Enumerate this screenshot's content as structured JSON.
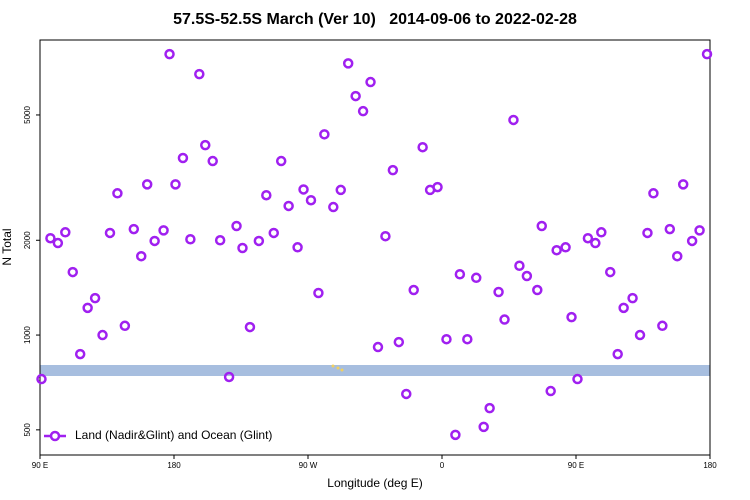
{
  "chart_data": {
    "type": "scatter",
    "title": "57.5S-52.5S March (Ver 10)   2014-09-06 to 2022-02-28",
    "x_label": "Longitude (deg E)",
    "y_label": "N Total",
    "log_y": true,
    "legend": "bottom-left",
    "xlim": [
      90,
      540
    ],
    "ylim": [
      416,
      8650
    ],
    "xticks": [
      {
        "value": 90,
        "label": "90 E"
      },
      {
        "value": 180,
        "label": "180"
      },
      {
        "value": 270,
        "label": "90 W"
      },
      {
        "value": 360,
        "label": "0"
      },
      {
        "value": 450,
        "label": "90 E"
      },
      {
        "value": 540,
        "label": "180"
      }
    ],
    "yticks": [
      500,
      1000,
      2000,
      5000
    ],
    "series": [
      {
        "name": "Land (Nadir&Glint) and Ocean (Glint)",
        "color": "#a020f0",
        "x": [
          91,
          97,
          102,
          107,
          112,
          117,
          122,
          127,
          132,
          137,
          142,
          147,
          153,
          158,
          162,
          167,
          173,
          177,
          181,
          186,
          191,
          197,
          201,
          206,
          211,
          217,
          222,
          226,
          231,
          237,
          242,
          247,
          252,
          257,
          263,
          267,
          272,
          277,
          281,
          287,
          292,
          297,
          302,
          307,
          312,
          317,
          322,
          327,
          331,
          336,
          341,
          347,
          352,
          357,
          363,
          369,
          372,
          377,
          383,
          388,
          392,
          398,
          402,
          408,
          412,
          417,
          424,
          427,
          433,
          437,
          443,
          447,
          451,
          458,
          463,
          467,
          473,
          478,
          482,
          488,
          493,
          498,
          502,
          508,
          513,
          518,
          522,
          528,
          533,
          538
        ],
        "values": [
          725,
          2030,
          1960,
          2120,
          1585,
          870,
          1220,
          1310,
          1000,
          2110,
          2820,
          1070,
          2170,
          1780,
          3010,
          1990,
          2150,
          7800,
          3010,
          3650,
          2015,
          6740,
          4010,
          3570,
          2000,
          736,
          2220,
          1890,
          1060,
          1990,
          2780,
          2110,
          3570,
          2570,
          1900,
          2900,
          2680,
          1360,
          4340,
          2550,
          2890,
          7290,
          5740,
          5140,
          6360,
          916,
          2060,
          3340,
          950,
          650,
          1390,
          3950,
          2890,
          2950,
          970,
          482,
          1560,
          970,
          1520,
          511,
          586,
          1370,
          1120,
          4820,
          1660,
          1540,
          1390,
          2220,
          664,
          1860,
          1900,
          1140,
          725,
          2030,
          1960,
          2120,
          1585,
          870,
          1220,
          1310,
          1000,
          2110,
          2820,
          1070,
          2170,
          1780,
          3010,
          1990,
          2150,
          7800
        ]
      }
    ]
  }
}
